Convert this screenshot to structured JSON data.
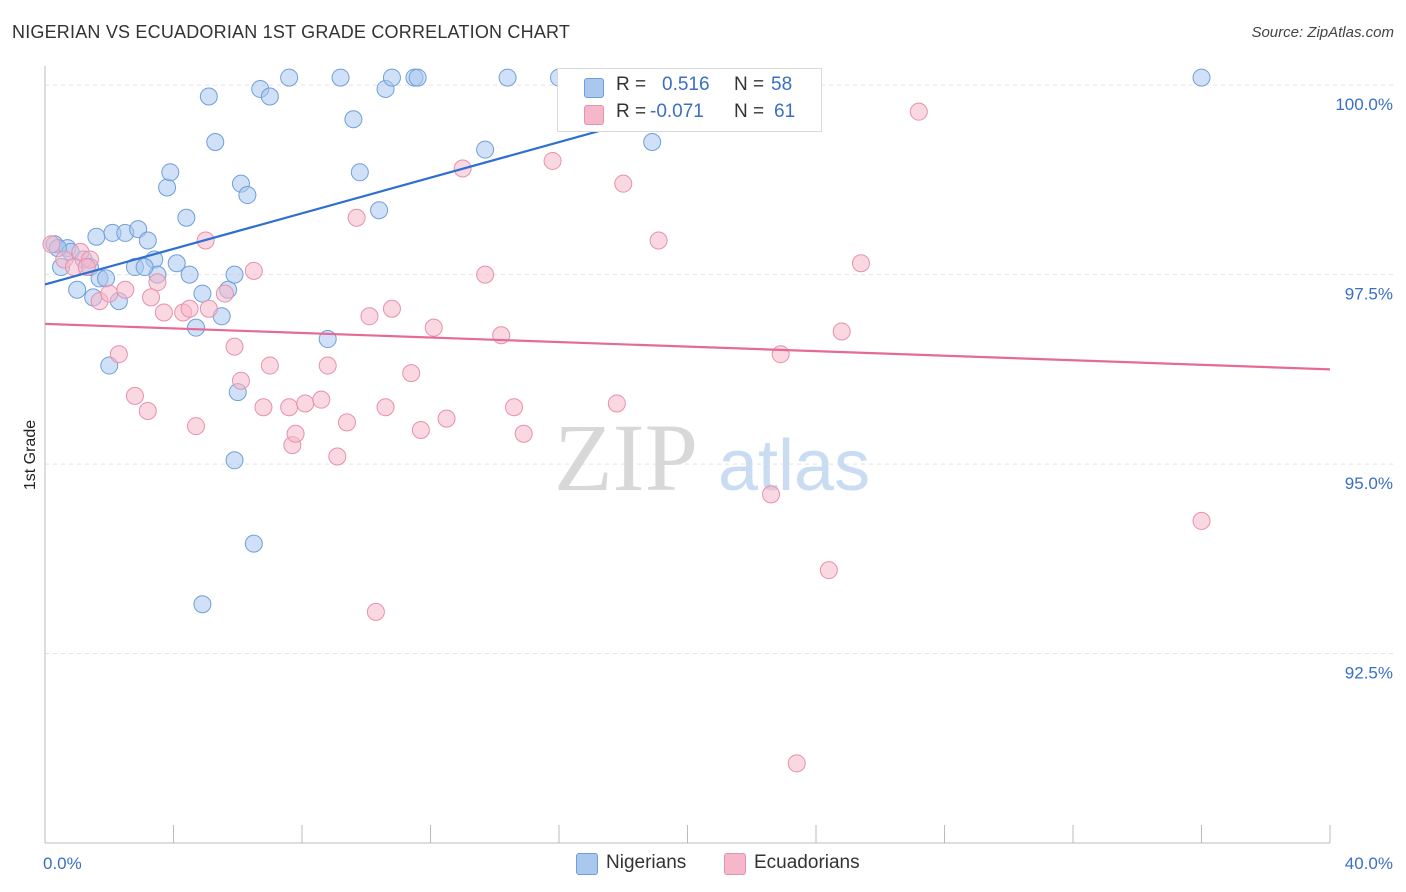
{
  "title": "NIGERIAN VS ECUADORIAN 1ST GRADE CORRELATION CHART",
  "source": "Source: ZipAtlas.com",
  "watermark": {
    "zip": "ZIP",
    "atlas": "atlas"
  },
  "legend": {
    "rows": [
      {
        "r_label": "R =",
        "r_value": "0.516",
        "n_label": "N =",
        "n_value": "58"
      },
      {
        "r_label": "R =",
        "r_value": "-0.071",
        "n_label": "N =",
        "n_value": "61"
      }
    ]
  },
  "bottom_legend": {
    "nigerians": "Nigerians",
    "ecuadorians": "Ecuadorians"
  },
  "colors": {
    "nigerian_fill": "#aac7ee",
    "nigerian_stroke": "#6f9fdb",
    "nigerian_line": "#2f6fcf",
    "ecuadorian_fill": "#f5b8cb",
    "ecuadorian_stroke": "#e890ac",
    "ecuadorian_line": "#e56a95",
    "tick_text": "#3a6fc4",
    "grid": "#e3e3e3"
  },
  "chart_data": {
    "type": "scatter",
    "title": "NIGERIAN VS ECUADORIAN 1ST GRADE CORRELATION CHART",
    "xlabel": "",
    "ylabel": "1st Grade",
    "xlim": [
      0,
      40
    ],
    "ylim": [
      90.0,
      100.2
    ],
    "x_tick_labels": [
      "0.0%",
      "40.0%"
    ],
    "y_ticks": [
      92.5,
      95.0,
      97.5,
      100.0
    ],
    "y_tick_labels": [
      "92.5%",
      "95.0%",
      "97.5%",
      "100.0%"
    ],
    "grid": true,
    "legend_position": "top-center",
    "series": [
      {
        "name": "Nigerians",
        "r": 0.516,
        "n": 58,
        "trend": {
          "x": [
            0,
            22.4
          ],
          "y": [
            97.37,
            100.0
          ]
        },
        "points": [
          [
            0.3,
            97.9
          ],
          [
            0.5,
            97.6
          ],
          [
            0.7,
            97.85
          ],
          [
            0.8,
            97.8
          ],
          [
            1.0,
            97.3
          ],
          [
            1.2,
            97.7
          ],
          [
            1.4,
            97.6
          ],
          [
            1.5,
            97.2
          ],
          [
            1.6,
            98.0
          ],
          [
            1.7,
            97.45
          ],
          [
            2.1,
            98.05
          ],
          [
            2.5,
            98.05
          ],
          [
            2.8,
            97.6
          ],
          [
            2.9,
            98.1
          ],
          [
            3.2,
            97.95
          ],
          [
            3.4,
            97.7
          ],
          [
            3.5,
            97.5
          ],
          [
            3.8,
            98.65
          ],
          [
            3.9,
            98.85
          ],
          [
            4.1,
            97.65
          ],
          [
            4.4,
            98.25
          ],
          [
            4.5,
            97.5
          ],
          [
            4.7,
            96.8
          ],
          [
            4.9,
            97.25
          ],
          [
            5.1,
            99.85
          ],
          [
            5.3,
            99.25
          ],
          [
            5.5,
            96.95
          ],
          [
            5.7,
            97.3
          ],
          [
            5.9,
            97.5
          ],
          [
            6.1,
            98.7
          ],
          [
            6.3,
            98.55
          ],
          [
            6.7,
            99.95
          ],
          [
            7.0,
            99.85
          ],
          [
            7.6,
            100.1
          ],
          [
            8.8,
            96.65
          ],
          [
            9.2,
            100.1
          ],
          [
            9.6,
            99.55
          ],
          [
            9.8,
            98.85
          ],
          [
            10.4,
            98.35
          ],
          [
            10.6,
            99.95
          ],
          [
            10.8,
            100.1
          ],
          [
            11.5,
            100.1
          ],
          [
            11.6,
            100.1
          ],
          [
            13.7,
            99.15
          ],
          [
            14.4,
            100.1
          ],
          [
            16.0,
            100.1
          ],
          [
            16.8,
            100.1
          ],
          [
            18.9,
            99.25
          ],
          [
            36.0,
            100.1
          ],
          [
            2.0,
            96.3
          ],
          [
            3.1,
            97.6
          ],
          [
            5.9,
            95.05
          ],
          [
            6.5,
            93.95
          ],
          [
            4.9,
            93.15
          ],
          [
            6.0,
            95.95
          ],
          [
            2.3,
            97.15
          ],
          [
            0.4,
            97.85
          ],
          [
            1.9,
            97.45
          ]
        ]
      },
      {
        "name": "Ecuadorians",
        "r": -0.071,
        "n": 61,
        "trend": {
          "x": [
            0,
            40
          ],
          "y": [
            96.85,
            96.25
          ]
        },
        "points": [
          [
            0.2,
            97.9
          ],
          [
            0.6,
            97.7
          ],
          [
            1.1,
            97.8
          ],
          [
            1.4,
            97.7
          ],
          [
            1.7,
            97.15
          ],
          [
            2.0,
            97.25
          ],
          [
            2.3,
            96.45
          ],
          [
            2.5,
            97.3
          ],
          [
            2.8,
            95.9
          ],
          [
            3.2,
            95.7
          ],
          [
            3.5,
            97.4
          ],
          [
            3.7,
            97.0
          ],
          [
            4.3,
            97.0
          ],
          [
            4.5,
            97.05
          ],
          [
            4.7,
            95.5
          ],
          [
            5.0,
            97.95
          ],
          [
            5.1,
            97.05
          ],
          [
            5.6,
            97.25
          ],
          [
            5.9,
            96.55
          ],
          [
            6.1,
            96.1
          ],
          [
            6.5,
            97.55
          ],
          [
            6.8,
            95.75
          ],
          [
            7.0,
            96.3
          ],
          [
            7.6,
            95.75
          ],
          [
            7.7,
            95.25
          ],
          [
            7.8,
            95.4
          ],
          [
            8.1,
            95.8
          ],
          [
            8.6,
            95.85
          ],
          [
            8.8,
            96.3
          ],
          [
            9.1,
            95.1
          ],
          [
            9.4,
            95.55
          ],
          [
            9.7,
            98.25
          ],
          [
            10.1,
            96.95
          ],
          [
            10.6,
            95.75
          ],
          [
            10.8,
            97.05
          ],
          [
            11.4,
            96.2
          ],
          [
            11.7,
            95.45
          ],
          [
            12.1,
            96.8
          ],
          [
            12.5,
            95.6
          ],
          [
            13.0,
            98.9
          ],
          [
            13.7,
            97.5
          ],
          [
            14.2,
            96.7
          ],
          [
            14.6,
            95.75
          ],
          [
            14.9,
            95.4
          ],
          [
            15.8,
            99.0
          ],
          [
            17.8,
            95.8
          ],
          [
            18.0,
            98.7
          ],
          [
            19.1,
            97.95
          ],
          [
            22.6,
            94.6
          ],
          [
            22.9,
            96.45
          ],
          [
            23.0,
            100.0
          ],
          [
            23.4,
            91.05
          ],
          [
            24.4,
            93.6
          ],
          [
            24.8,
            96.75
          ],
          [
            25.4,
            97.65
          ],
          [
            27.2,
            99.65
          ],
          [
            36.0,
            94.25
          ],
          [
            10.3,
            93.05
          ],
          [
            0.9,
            97.6
          ],
          [
            3.3,
            97.2
          ],
          [
            1.3,
            97.6
          ]
        ]
      }
    ]
  }
}
